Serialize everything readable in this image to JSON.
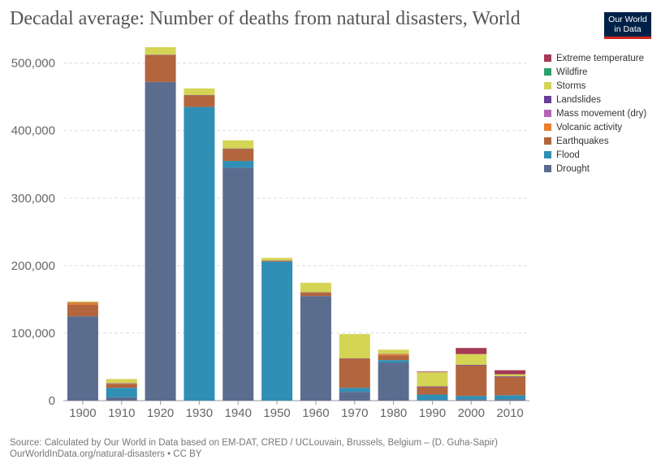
{
  "header": {
    "title": "Decadal average: Number of deaths from natural disasters, World",
    "logo_line1": "Our World",
    "logo_line2": "in Data"
  },
  "footer": {
    "source_line1": "Source: Calculated by Our World in Data based on EM-DAT, CRED / UCLouvain, Brussels, Belgium – (D. Guha-Sapir)",
    "source_line2": "OurWorldInData.org/natural-disasters • CC BY"
  },
  "chart_data": {
    "type": "bar",
    "stacked": true,
    "categories": [
      "1900",
      "1910",
      "1920",
      "1930",
      "1940",
      "1950",
      "1960",
      "1970",
      "1980",
      "1990",
      "2000",
      "2010"
    ],
    "ylim": [
      0,
      520000
    ],
    "yticks": [
      0,
      100000,
      200000,
      300000,
      400000,
      500000
    ],
    "ytick_labels": [
      "0",
      "100,000",
      "200,000",
      "300,000",
      "400,000",
      "500,000"
    ],
    "grid": true,
    "legend_position": "right",
    "series": [
      {
        "name": "Drought",
        "color": "#5b6d8f",
        "values": [
          125000,
          5000,
          472000,
          0,
          345000,
          0,
          155000,
          13000,
          56000,
          1000,
          2000,
          2000
        ]
      },
      {
        "name": "Flood",
        "color": "#2f8fb5",
        "values": [
          0,
          14000,
          0,
          435000,
          10000,
          206000,
          0,
          6000,
          4000,
          8000,
          5000,
          6000
        ]
      },
      {
        "name": "Earthquakes",
        "color": "#b3653e",
        "values": [
          17000,
          6000,
          40000,
          17000,
          18000,
          1000,
          5000,
          43000,
          7000,
          11000,
          45000,
          27000
        ]
      },
      {
        "name": "Volcanic activity",
        "color": "#e97f2f",
        "values": [
          3000,
          500,
          0,
          0,
          0,
          0,
          0,
          0,
          2000,
          0,
          0,
          0
        ]
      },
      {
        "name": "Mass movement (dry)",
        "color": "#b864b8",
        "values": [
          0,
          0,
          0,
          0,
          0,
          0,
          0,
          0,
          0,
          0,
          0,
          0
        ]
      },
      {
        "name": "Landslides",
        "color": "#6a3d9a",
        "values": [
          500,
          500,
          500,
          500,
          500,
          500,
          500,
          500,
          500,
          1000,
          1000,
          1000
        ]
      },
      {
        "name": "Storms",
        "color": "#d4d455",
        "values": [
          1500,
          6000,
          11000,
          10000,
          12000,
          4000,
          14000,
          36000,
          6000,
          21000,
          16000,
          3000
        ]
      },
      {
        "name": "Wildfire",
        "color": "#2d9f6f",
        "values": [
          0,
          0,
          0,
          0,
          0,
          0,
          0,
          0,
          0,
          0,
          0,
          0
        ]
      },
      {
        "name": "Extreme temperature",
        "color": "#a43a54",
        "values": [
          0,
          0,
          0,
          0,
          0,
          0,
          0,
          0,
          0,
          1000,
          9000,
          6000
        ]
      }
    ],
    "legend_order": [
      "Extreme temperature",
      "Wildfire",
      "Storms",
      "Landslides",
      "Mass movement (dry)",
      "Volcanic activity",
      "Earthquakes",
      "Flood",
      "Drought"
    ]
  }
}
